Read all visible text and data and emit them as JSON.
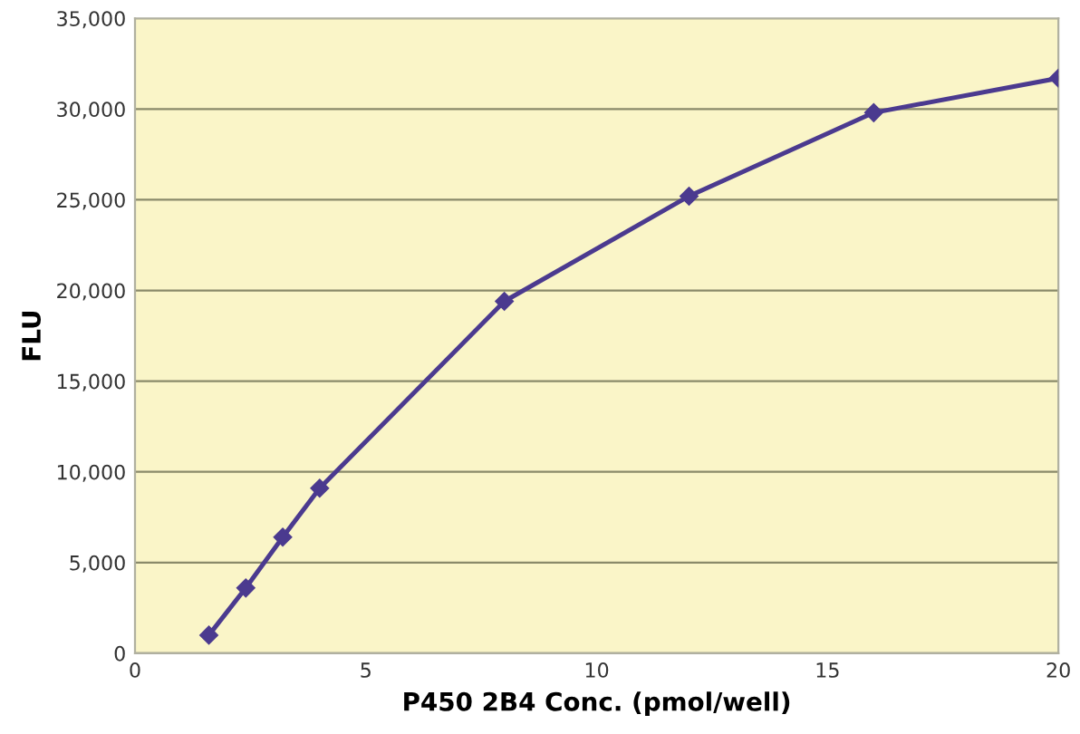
{
  "chart_data": {
    "type": "line",
    "xlabel": "P450 2B4 Conc. (pmol/well)",
    "ylabel": "FLU",
    "x": [
      1.6,
      2.4,
      3.2,
      4,
      8,
      12,
      16,
      20
    ],
    "series": [
      {
        "color": "#4b3a8f",
        "values": [
          1000,
          3600,
          6400,
          9100,
          19400,
          25200,
          29800,
          31700
        ]
      }
    ],
    "xlim": [
      0,
      20
    ],
    "xticks": [
      0,
      5,
      10,
      15,
      20
    ],
    "ylim": [
      0,
      35000
    ],
    "yticks": [
      {
        "value": 0,
        "label": "0"
      },
      {
        "value": 5000,
        "label": "5,000"
      },
      {
        "value": 10000,
        "label": "10,000"
      },
      {
        "value": 15000,
        "label": "15,000"
      },
      {
        "value": 20000,
        "label": "20,000"
      },
      {
        "value": 25000,
        "label": "25,000"
      },
      {
        "value": 30000,
        "label": "30,000"
      },
      {
        "value": 35000,
        "label": "35,000"
      }
    ],
    "grid": "y",
    "marker": "diamond",
    "line_style": "solid"
  }
}
